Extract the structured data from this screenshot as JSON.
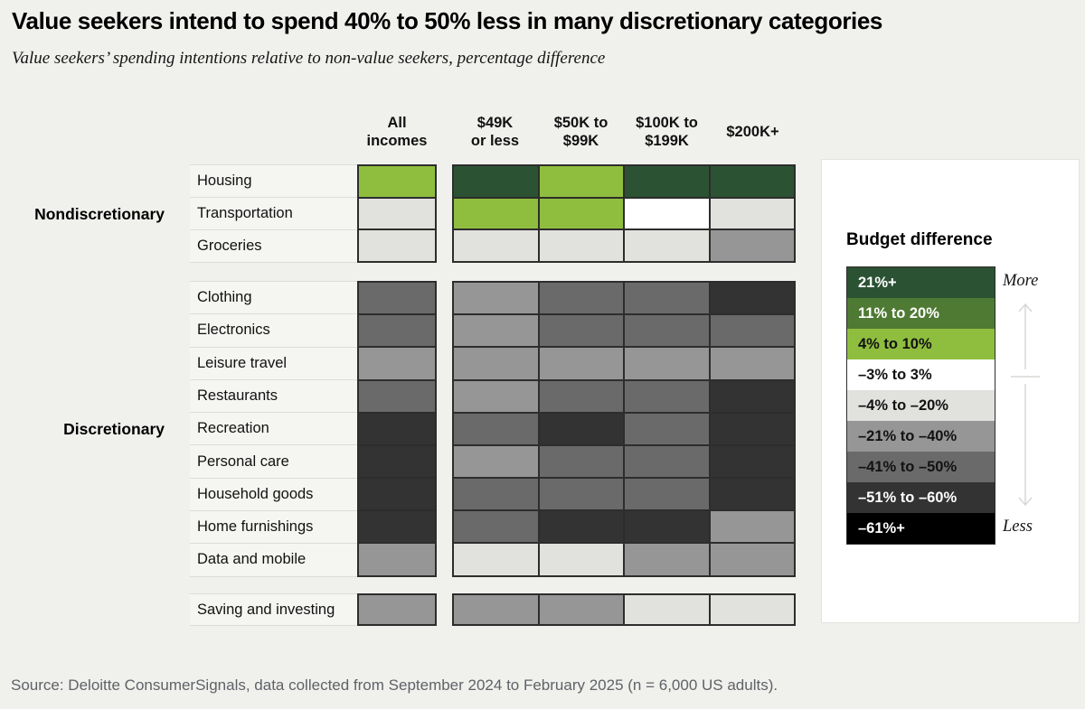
{
  "source": "Source: Deloitte ConsumerSignals, data collected from September 2024 to February 2025 (n = 6,000 US adults).",
  "chart_data": {
    "type": "heatmap",
    "title": "Value seekers intend to spend 40% to 50% less in many discretionary categories",
    "subtitle": "Value seekers’ spending intentions relative to non-value seekers, percentage difference",
    "columns": [
      {
        "label": "All incomes",
        "lines": [
          "All",
          "incomes"
        ]
      },
      {
        "label": "$49K or less",
        "lines": [
          "$49K",
          "or less"
        ]
      },
      {
        "label": "$50K to $99K",
        "lines": [
          "$50K to",
          "$99K"
        ]
      },
      {
        "label": "$100K to $199K",
        "lines": [
          "$100K to",
          "$199K"
        ]
      },
      {
        "label": "$200K+",
        "lines": [
          "$200K+"
        ]
      }
    ],
    "groups": [
      {
        "label": "Nondiscretionary",
        "rows": [
          {
            "name": "Housing",
            "cells": [
              "4% to 10%",
              "21%+",
              "4% to 10%",
              "21%+",
              "21%+"
            ]
          },
          {
            "name": "Transportation",
            "cells": [
              "–4% to –20%",
              "4% to 10%",
              "4% to 10%",
              "–3% to 3%",
              "–4% to –20%"
            ]
          },
          {
            "name": "Groceries",
            "cells": [
              "–4% to –20%",
              "–4% to –20%",
              "–4% to –20%",
              "–4% to –20%",
              "–21% to –40%"
            ]
          }
        ]
      },
      {
        "label": "Discretionary",
        "rows": [
          {
            "name": "Clothing",
            "cells": [
              "–41% to –50%",
              "–21% to –40%",
              "–41% to –50%",
              "–41% to –50%",
              "–51% to –60%"
            ]
          },
          {
            "name": "Electronics",
            "cells": [
              "–41% to –50%",
              "–21% to –40%",
              "–41% to –50%",
              "–41% to –50%",
              "–41% to –50%"
            ]
          },
          {
            "name": "Leisure travel",
            "cells": [
              "–21% to –40%",
              "–21% to –40%",
              "–21% to –40%",
              "–21% to –40%",
              "–21% to –40%"
            ]
          },
          {
            "name": "Restaurants",
            "cells": [
              "–41% to –50%",
              "–21% to –40%",
              "–41% to –50%",
              "–41% to –50%",
              "–51% to –60%"
            ]
          },
          {
            "name": "Recreation",
            "cells": [
              "–51% to –60%",
              "–41% to –50%",
              "–51% to –60%",
              "–41% to –50%",
              "–51% to –60%"
            ]
          },
          {
            "name": "Personal care",
            "cells": [
              "–51% to –60%",
              "–21% to –40%",
              "–41% to –50%",
              "–41% to –50%",
              "–51% to –60%"
            ]
          },
          {
            "name": "Household goods",
            "cells": [
              "–51% to –60%",
              "–41% to –50%",
              "–41% to –50%",
              "–41% to –50%",
              "–51% to –60%"
            ]
          },
          {
            "name": "Home furnishings",
            "cells": [
              "–51% to –60%",
              "–41% to –50%",
              "–51% to –60%",
              "–51% to –60%",
              "–21% to –40%"
            ]
          },
          {
            "name": "Data and mobile",
            "cells": [
              "–21% to –40%",
              "–4% to –20%",
              "–4% to –20%",
              "–21% to –40%",
              "–21% to –40%"
            ]
          }
        ]
      },
      {
        "label": "",
        "rows": [
          {
            "name": "Saving and investing",
            "cells": [
              "–21% to –40%",
              "–21% to –40%",
              "–21% to –40%",
              "–4% to –20%",
              "–4% to –20%"
            ]
          }
        ]
      }
    ],
    "legend": {
      "title": "Budget difference",
      "more_label": "More",
      "less_label": "Less",
      "bins": [
        {
          "label": "21%+",
          "color": "#2C5234",
          "text_color": "#FFFFFF"
        },
        {
          "label": "11% to 20%",
          "color": "#4F7A34",
          "text_color": "#FFFFFF"
        },
        {
          "label": "4% to 10%",
          "color": "#8FBE3F",
          "text_color": "#121212"
        },
        {
          "label": "–3% to 3%",
          "color": "#FFFFFF",
          "text_color": "#121212"
        },
        {
          "label": "–4% to –20%",
          "color": "#E1E1DE",
          "text_color": "#121212"
        },
        {
          "label": "–21% to –40%",
          "color": "#969696",
          "text_color": "#121212"
        },
        {
          "label": "–41% to –50%",
          "color": "#6A6A6A",
          "text_color": "#121212"
        },
        {
          "label": "–51% to –60%",
          "color": "#333333",
          "text_color": "#FFFFFF"
        },
        {
          "label": "–61%+",
          "color": "#000000",
          "text_color": "#FFFFFF"
        }
      ]
    }
  }
}
